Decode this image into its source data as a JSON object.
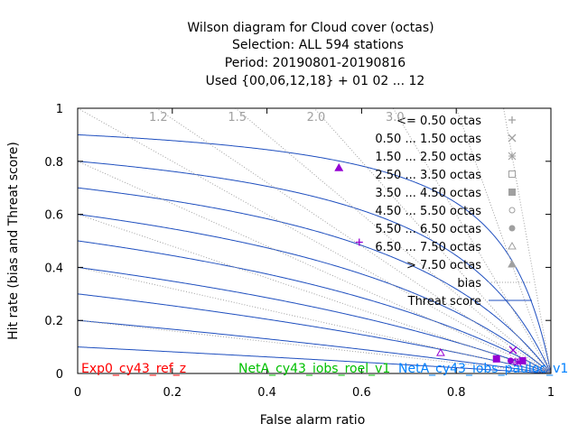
{
  "title_lines": [
    "Wilson diagram  for Cloud cover (octas)",
    "Selection: ALL    594 stations",
    "Period: 20190801-20190816",
    "Used {00,06,12,18} + 01 02 ... 12"
  ],
  "chart_data": {
    "type": "scatter",
    "xlabel": "False alarm ratio",
    "ylabel": "Hit rate (bias and Threat score)",
    "xlim": [
      0,
      1
    ],
    "ylim": [
      0,
      1
    ],
    "x_ticks": [
      "0",
      "0.2",
      "0.4",
      "0.6",
      "0.8",
      "1"
    ],
    "y_ticks": [
      "0",
      "0.2",
      "0.4",
      "0.6",
      "0.8",
      "1"
    ],
    "grid": false,
    "legend_position": "top-right",
    "bias_lines": [
      {
        "value": 1.2,
        "label": "1.2"
      },
      {
        "value": 1.5,
        "label": "1.5"
      },
      {
        "value": 2.0,
        "label": "2.0"
      },
      {
        "value": 3.0,
        "label": "3.0"
      }
    ],
    "threat_score_levels": [
      0.1,
      0.2,
      0.3,
      0.4,
      0.5,
      0.6,
      0.7,
      0.8,
      0.9
    ],
    "legend": [
      {
        "label": "<= 0.50 octas",
        "marker": "plus"
      },
      {
        "label": "0.50 ... 1.50 octas",
        "marker": "cross"
      },
      {
        "label": "1.50 ... 2.50 octas",
        "marker": "star"
      },
      {
        "label": "2.50 ... 3.50 octas",
        "marker": "open-square"
      },
      {
        "label": "3.50 ... 4.50 octas",
        "marker": "filled-square"
      },
      {
        "label": "4.50 ... 5.50 octas",
        "marker": "open-circle"
      },
      {
        "label": "5.50 ... 6.50 octas",
        "marker": "filled-circle"
      },
      {
        "label": "6.50 ... 7.50 octas",
        "marker": "open-triangle"
      },
      {
        "label": "> 7.50 octas",
        "marker": "filled-triangle"
      },
      {
        "label": "bias",
        "marker": "dotted-line"
      },
      {
        "label": "Threat score",
        "marker": "solid-line"
      }
    ],
    "experiments": [
      {
        "name": "Exp0_cy43_ref_z",
        "color": "#ff0000"
      },
      {
        "name": "NetA_cy43_iobs_roel_v1",
        "color": "#00c000"
      },
      {
        "name": "NetA_cy43_iobs_pauloc_v1",
        "color": "#0080ff"
      }
    ],
    "points": [
      {
        "marker": "open-triangle",
        "x": 0.552,
        "y": 0.775
      },
      {
        "marker": "filled-triangle",
        "x": 0.552,
        "y": 0.775
      },
      {
        "marker": "plus",
        "x": 0.595,
        "y": 0.495
      },
      {
        "marker": "open-triangle",
        "x": 0.767,
        "y": 0.078
      },
      {
        "marker": "cross",
        "x": 0.92,
        "y": 0.088
      },
      {
        "marker": "filled-square",
        "x": 0.885,
        "y": 0.055
      },
      {
        "marker": "filled-circle",
        "x": 0.915,
        "y": 0.048
      },
      {
        "marker": "open-circle",
        "x": 0.925,
        "y": 0.045
      },
      {
        "marker": "filled-square",
        "x": 0.94,
        "y": 0.048
      },
      {
        "marker": "star",
        "x": 0.93,
        "y": 0.042
      }
    ]
  },
  "colors": {
    "threat_line": "#1f4fbf",
    "bias_line": "#a0a0a0",
    "marker": "#9400d3",
    "legend_marker": "#a0a0a0"
  }
}
